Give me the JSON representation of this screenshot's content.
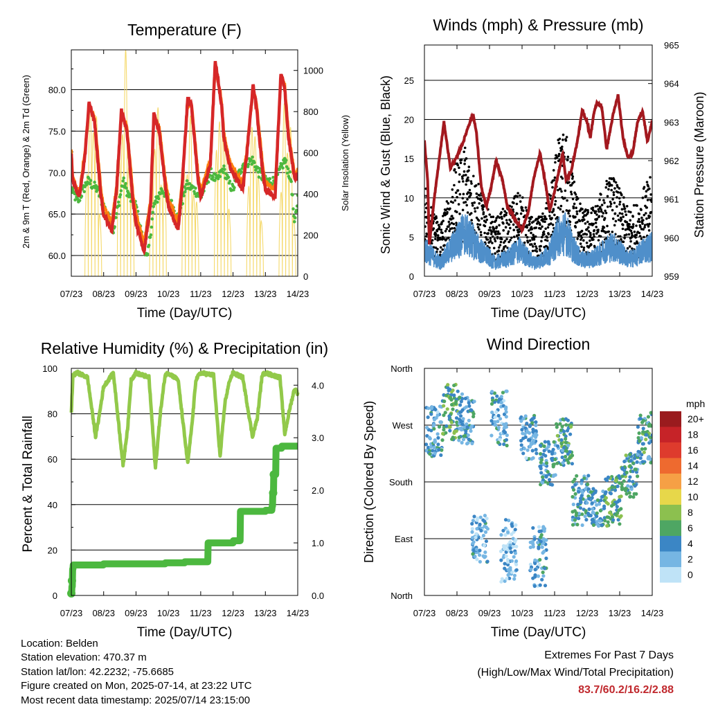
{
  "chart_data": [
    {
      "type": "line",
      "title": "Temperature (F)",
      "xlabel": "Time (Day/UTC)",
      "ylabel": "2m & 9m T (Red, Orange) & 2m Td (Green)",
      "y2label": "Solar Insolation (Yellow)",
      "x_ticks": [
        "07/23",
        "08/23",
        "09/23",
        "10/23",
        "11/23",
        "12/23",
        "13/23",
        "14/23"
      ],
      "x_range": [
        0,
        7
      ],
      "ylim": [
        57.5,
        84.8
      ],
      "y_ticks": [
        "60.0",
        "65.0",
        "70.0",
        "75.0",
        "80.0"
      ],
      "y2lim": [
        0,
        1100
      ],
      "y2_ticks": [
        "0",
        "200",
        "400",
        "600",
        "800",
        "1000"
      ],
      "series": [
        {
          "name": "2m T",
          "color": "#d62728",
          "style": "thick",
          "x": [
            0,
            0.04,
            0.25,
            0.42,
            0.55,
            0.72,
            0.92,
            1.0,
            1.25,
            1.4,
            1.55,
            1.72,
            1.92,
            2.0,
            2.25,
            2.45,
            2.55,
            2.72,
            2.92,
            3.0,
            3.3,
            3.42,
            3.6,
            3.72,
            3.92,
            4.0,
            4.3,
            4.45,
            4.65,
            4.72,
            4.92,
            5.0,
            5.3,
            5.42,
            5.62,
            5.72,
            5.92,
            6.0,
            6.3,
            6.48,
            6.6,
            6.72,
            6.92,
            7.0
          ],
          "values": [
            72.5,
            69,
            67,
            72,
            78.5,
            76,
            67,
            65,
            63,
            68,
            77.5,
            75,
            66,
            64,
            60.5,
            66,
            77,
            75,
            68,
            66,
            63,
            68,
            79,
            78,
            69,
            67,
            71,
            83.5,
            78,
            74,
            70.5,
            70,
            68,
            72,
            80.5,
            78,
            70,
            68,
            67,
            82,
            80,
            74,
            69,
            70
          ]
        },
        {
          "name": "9m T",
          "color": "#ff7f0e",
          "style": "thin",
          "x": [
            0,
            0.04,
            0.25,
            0.42,
            0.55,
            0.72,
            0.92,
            1.0,
            1.25,
            1.4,
            1.55,
            1.72,
            1.92,
            2.0,
            2.25,
            2.45,
            2.55,
            2.72,
            2.92,
            3.0,
            3.3,
            3.42,
            3.6,
            3.72,
            3.92,
            4.0,
            4.3,
            4.45,
            4.65,
            4.72,
            4.92,
            5.0,
            5.3,
            5.42,
            5.62,
            5.72,
            5.92,
            6.0,
            6.3,
            6.48,
            6.6,
            6.72,
            6.92,
            7.0
          ],
          "values": [
            73,
            69.5,
            67.5,
            72.5,
            78,
            76.5,
            67.8,
            66,
            63.8,
            68.5,
            77,
            75.5,
            66.8,
            65,
            61.5,
            66.5,
            76.5,
            75.5,
            68.8,
            66.8,
            64,
            68.5,
            78.5,
            78.3,
            69.8,
            67.8,
            71.5,
            83,
            78.5,
            74.5,
            71,
            70.5,
            68.8,
            72.5,
            80,
            78.5,
            70.8,
            68.8,
            68,
            81.5,
            80.5,
            74.5,
            69.5,
            70.5
          ]
        },
        {
          "name": "2m Td",
          "color": "#4cb83f",
          "style": "dots",
          "x": [
            0,
            0.2,
            0.5,
            0.8,
            1.0,
            1.3,
            1.6,
            1.8,
            2.0,
            2.2,
            2.35,
            2.55,
            2.8,
            3.0,
            3.3,
            3.55,
            3.8,
            4.0,
            4.3,
            4.5,
            4.7,
            4.9,
            5.0,
            5.3,
            5.6,
            5.8,
            6.0,
            6.3,
            6.6,
            6.8,
            6.9,
            7.0
          ],
          "values": [
            68,
            66.5,
            69,
            68,
            66,
            63,
            69,
            67,
            66,
            62,
            59.5,
            66,
            68,
            67,
            64.5,
            68.5,
            68,
            67,
            70,
            69,
            70.5,
            68.5,
            68,
            71,
            71.5,
            70,
            69,
            69,
            71.5,
            69,
            63.5,
            67
          ]
        },
        {
          "name": "Solar Insolation",
          "color": "#f5d96b",
          "style": "thin",
          "axis": "right",
          "note": "diurnal peaks, y2 units",
          "day_peaks": [
            [
              850,
              950,
              700,
              880,
              520
            ],
            [
              1000,
              780,
              1100,
              600,
              900
            ],
            [
              950,
              700,
              820,
              500,
              880
            ],
            [
              900,
              560,
              780,
              450,
              620
            ],
            [
              1050,
              850,
              700,
              760,
              560
            ],
            [
              750,
              820,
              680,
              560,
              460
            ],
            [
              700,
              950,
              600,
              820,
              500
            ]
          ]
        }
      ]
    },
    {
      "type": "scatter",
      "title": "Winds (mph) & Pressure (mb)",
      "xlabel": "Time (Day/UTC)",
      "ylabel": "Sonic Wind & Gust (Blue, Black)",
      "y2label": "Station Pressure (Maroon)",
      "x_ticks": [
        "07/23",
        "08/23",
        "09/23",
        "10/23",
        "11/23",
        "12/23",
        "13/23",
        "14/23"
      ],
      "x_range": [
        0,
        7
      ],
      "ylim": [
        0,
        29.5
      ],
      "y_ticks": [
        "0",
        "5",
        "10",
        "15",
        "20",
        "25"
      ],
      "y2lim": [
        959,
        965
      ],
      "y2_ticks": [
        "959",
        "960",
        "961",
        "962",
        "963",
        "964",
        "965"
      ],
      "series": [
        {
          "name": "Sonic Wind",
          "color": "#4f8fca",
          "style": "line",
          "wind_level_per_6h": [
            4,
            3,
            2,
            3.5,
            5,
            6.5,
            5.5,
            4,
            3,
            2,
            2.5,
            3,
            4,
            3,
            2,
            2.5,
            3.5,
            6,
            6.5,
            4,
            2.5,
            2.5,
            3,
            4,
            4.5,
            3.5,
            2.5,
            3,
            4,
            4.5
          ]
        },
        {
          "name": "Gust",
          "color": "#000000",
          "style": "dots",
          "gust_level_per_6h": [
            9,
            6,
            5,
            7,
            10,
            12,
            10,
            8,
            6,
            5,
            6,
            6.5,
            8,
            6,
            5,
            5.5,
            7.5,
            12,
            13,
            9,
            6,
            6,
            6.5,
            8.5,
            9,
            7.5,
            6,
            6.5,
            8,
            9
          ]
        },
        {
          "name": "Station Pressure",
          "color": "#a3191f",
          "style": "thick",
          "axis": "right",
          "x": [
            0,
            0.1,
            0.15,
            0.3,
            0.45,
            0.6,
            0.8,
            1.0,
            1.2,
            1.35,
            1.5,
            1.6,
            1.75,
            1.9,
            2.05,
            2.2,
            2.4,
            2.55,
            2.7,
            2.85,
            3.0,
            3.2,
            3.35,
            3.55,
            3.7,
            3.85,
            4.0,
            4.15,
            4.25,
            4.35,
            4.5,
            4.7,
            4.85,
            5.0,
            5.1,
            5.2,
            5.3,
            5.45,
            5.6,
            5.8,
            5.95,
            6.1,
            6.25,
            6.4,
            6.55,
            6.7,
            6.85,
            7.0
          ],
          "values": [
            962.5,
            961.5,
            959.8,
            961.0,
            962.0,
            963.0,
            961.8,
            962.1,
            962.5,
            962.9,
            963.2,
            962.7,
            961.3,
            960.8,
            961.3,
            962.0,
            961.5,
            960.8,
            960.6,
            960.4,
            960.2,
            960.7,
            961.5,
            962.2,
            961.5,
            960.7,
            961.2,
            961.8,
            962.2,
            961.5,
            961.7,
            962.5,
            963.3,
            963.0,
            962.6,
            963.2,
            963.5,
            963.4,
            962.3,
            963.2,
            963.7,
            962.6,
            962.1,
            962.2,
            963.0,
            963.3,
            962.5,
            963.0
          ]
        }
      ]
    },
    {
      "type": "line",
      "title": "Relative Humidity (%) & Precipitation (in)",
      "xlabel": "Time (Day/UTC)",
      "ylabel": "Percent & Total Rainfall",
      "x_ticks": [
        "07/23",
        "08/23",
        "09/23",
        "10/23",
        "11/23",
        "12/23",
        "13/23",
        "14/23"
      ],
      "x_range": [
        0,
        7
      ],
      "ylim": [
        0,
        100
      ],
      "y_ticks": [
        "0",
        "20",
        "40",
        "60",
        "80",
        "100"
      ],
      "y2lim": [
        0,
        4.32
      ],
      "y2_ticks": [
        "0.0",
        "1.0",
        "2.0",
        "3.0",
        "4.0"
      ],
      "series": [
        {
          "name": "Relative Humidity",
          "color": "#92c94a",
          "style": "thick",
          "x": [
            0,
            0.05,
            0.2,
            0.5,
            0.75,
            0.85,
            1.0,
            1.3,
            1.6,
            1.75,
            1.85,
            2.0,
            2.4,
            2.6,
            2.75,
            2.9,
            3.0,
            3.3,
            3.6,
            3.75,
            3.85,
            4.0,
            4.4,
            4.6,
            4.75,
            4.9,
            5.0,
            5.3,
            5.6,
            5.75,
            5.9,
            6.0,
            6.45,
            6.6,
            6.75,
            6.9,
            7.0
          ],
          "values": [
            80,
            97,
            98,
            96,
            70,
            78,
            92,
            98,
            57,
            75,
            95,
            98,
            96,
            56,
            80,
            97,
            98,
            95,
            58,
            78,
            95,
            98,
            97,
            61,
            85,
            95,
            98,
            96,
            70,
            78,
            97,
            98,
            96,
            71,
            82,
            91,
            89
          ]
        },
        {
          "name": "Total Precipitation",
          "color": "#4cb83f",
          "style": "steps",
          "axis": "right",
          "x": [
            0,
            0.02,
            0.04,
            0.06,
            1.0,
            2.0,
            2.9,
            3.5,
            4.0,
            4.2,
            4.22,
            5.0,
            5.2,
            5.22,
            6.0,
            6.2,
            6.22,
            6.25,
            6.32,
            6.5,
            7.0
          ],
          "values": [
            0.04,
            0.17,
            0.5,
            0.58,
            0.6,
            0.6,
            0.62,
            0.64,
            0.64,
            0.64,
            1.0,
            1.04,
            1.04,
            1.6,
            1.62,
            1.7,
            1.95,
            2.3,
            2.8,
            2.84,
            2.86
          ]
        }
      ]
    },
    {
      "type": "scatter",
      "title": "Wind Direction",
      "xlabel": "Time (Day/UTC)",
      "ylabel": "Direction (Colored By Speed)",
      "x_ticks": [
        "07/23",
        "08/23",
        "09/23",
        "10/23",
        "11/23",
        "12/23",
        "13/23",
        "14/23"
      ],
      "x_range": [
        0,
        7
      ],
      "y_ticks": [
        "North",
        "East",
        "South",
        "West",
        "North"
      ],
      "ylim_degrees": [
        0,
        360
      ],
      "colorbar": {
        "title": "mph",
        "labels": [
          "20+",
          "18",
          "16",
          "14",
          "12",
          "10",
          "8",
          "6",
          "4",
          "2",
          "0"
        ],
        "colors": [
          "#9a1b1e",
          "#c62328",
          "#de3b2d",
          "#ee6a2f",
          "#f6a045",
          "#e7d74a",
          "#8cc04f",
          "#4ea663",
          "#3b86c5",
          "#76b6e3",
          "#bfe3f7"
        ]
      },
      "direction_clusters": [
        {
          "day": 0.3,
          "dir": 260,
          "spread": 40,
          "speed": 3
        },
        {
          "day": 0.8,
          "dir": 290,
          "spread": 45,
          "speed": 6
        },
        {
          "day": 1.3,
          "dir": 280,
          "spread": 40,
          "speed": 4
        },
        {
          "day": 1.7,
          "dir": 90,
          "spread": 40,
          "speed": 3
        },
        {
          "day": 2.3,
          "dir": 280,
          "spread": 45,
          "speed": 3
        },
        {
          "day": 2.6,
          "dir": 70,
          "spread": 50,
          "speed": 2
        },
        {
          "day": 3.2,
          "dir": 250,
          "spread": 35,
          "speed": 3
        },
        {
          "day": 3.5,
          "dir": 60,
          "spread": 50,
          "speed": 3
        },
        {
          "day": 3.8,
          "dir": 210,
          "spread": 35,
          "speed": 4
        },
        {
          "day": 4.3,
          "dir": 240,
          "spread": 40,
          "speed": 5
        },
        {
          "day": 4.8,
          "dir": 150,
          "spread": 40,
          "speed": 4
        },
        {
          "day": 5.3,
          "dir": 140,
          "spread": 30,
          "speed": 4
        },
        {
          "day": 5.8,
          "dir": 150,
          "spread": 40,
          "speed": 6
        },
        {
          "day": 6.3,
          "dir": 190,
          "spread": 35,
          "speed": 5
        },
        {
          "day": 6.8,
          "dir": 250,
          "spread": 40,
          "speed": 5
        }
      ]
    }
  ],
  "footer": {
    "location": "Location: Belden",
    "elevation": "Station elevation: 470.37 m",
    "latlon": "Station lat/lon: 42.2232; -75.6685",
    "created": "Figure created on Mon, 2025-07-14, at 23:22 UTC",
    "recent": "Most recent data timestamp: 2025/07/14 23:15:00",
    "extremes_title": "Extremes For Past 7 Days",
    "extremes_subtitle": "(High/Low/Max Wind/Total Precipitation)",
    "extremes_values": "83.7/60.2/16.2/2.88",
    "extremes_color": "#c0282d"
  }
}
